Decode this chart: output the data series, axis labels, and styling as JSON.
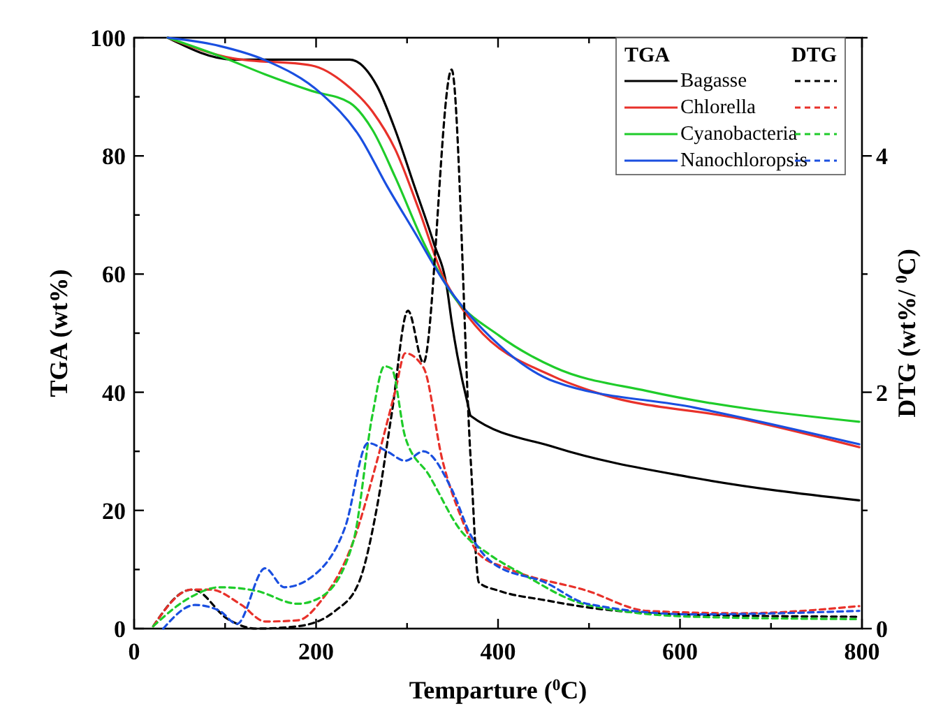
{
  "chart_data": {
    "type": "line",
    "xlabel": "Temparture ($^{0}$C)",
    "ylabel": "TGA (wt%)",
    "y2label": "DTG (wt%/ $^{0}$C)",
    "legend_title": "TGA",
    "annotations": [
      "DTG"
    ],
    "legend": "top right",
    "grid": false,
    "marker": "none",
    "xlim": [
      0,
      800
    ],
    "xticks": [
      0,
      {
        "value": 100,
        "label": null
      },
      200,
      {
        "value": 300,
        "label": null
      },
      400,
      {
        "value": 500,
        "label": null
      },
      600,
      {
        "value": 700,
        "label": null
      },
      800
    ],
    "ylim": [
      0,
      100
    ],
    "yticks": [
      0,
      {
        "value": 10,
        "label": null
      },
      20,
      {
        "value": 30,
        "label": null
      },
      40,
      {
        "value": 50,
        "label": null
      },
      60,
      {
        "value": 70,
        "label": null
      },
      80,
      {
        "value": 90,
        "label": null
      },
      100
    ],
    "y2lim": [
      0,
      5
    ],
    "y2ticks": [
      0,
      {
        "value": 1,
        "label": null
      },
      2,
      {
        "value": 3,
        "label": null
      },
      4,
      {
        "value": 5,
        "label": null
      }
    ],
    "series": [
      {
        "name": "Bagasse",
        "color": "#000000",
        "line_style": "solid",
        "x": [
          37,
          109,
          237,
          267,
          287,
          308,
          329,
          344,
          349,
          367,
          370,
          462,
          616,
          797
        ],
        "values": [
          100,
          96.3,
          96.3,
          91.8,
          84.4,
          74.9,
          65.4,
          57.5,
          52,
          37.8,
          36,
          30.7,
          25.5,
          21.7
        ]
      },
      {
        "name": "Chlorella",
        "color": "#e8312a",
        "line_style": "solid",
        "x": [
          37,
          109,
          195,
          232,
          262,
          287,
          313,
          339,
          359,
          375,
          462,
          513,
          667,
          797
        ],
        "values": [
          100,
          96.5,
          95.3,
          92.2,
          87.5,
          81.1,
          70.9,
          59.8,
          54.5,
          51.3,
          42.6,
          39.7,
          35.5,
          30.7
        ]
      },
      {
        "name": "Cyanobacteria",
        "color": "#1fcc2a",
        "line_style": "solid",
        "x": [
          37,
          94,
          144,
          195,
          237,
          262,
          287,
          318,
          349,
          401,
          462,
          564,
          797
        ],
        "values": [
          100,
          96.9,
          93.8,
          91,
          89,
          84.4,
          76.4,
          65.4,
          56.7,
          49.6,
          44.2,
          40.2,
          35
        ]
      },
      {
        "name": "Nanochloropsis",
        "color": "#1a4fe0",
        "line_style": "solid",
        "x": [
          37,
          94,
          144,
          206,
          247,
          278,
          309,
          339,
          401,
          462,
          616,
          797
        ],
        "values": [
          100,
          98.6,
          96.2,
          90.5,
          83.5,
          74.9,
          66.9,
          59.1,
          48,
          41.8,
          37.4,
          31.2
        ]
      },
      {
        "color": "#000000",
        "line_style": "dashed",
        "axis": "y2",
        "x": [
          21,
          57,
          65,
          103,
          134,
          180,
          221,
          247,
          267,
          283,
          301,
          318,
          349,
          370,
          379,
          401,
          452,
          498,
          600,
          797
        ],
        "values": [
          0.02,
          0.32,
          0.33,
          0.08,
          0,
          0.02,
          0.15,
          0.39,
          1.03,
          1.81,
          2.69,
          2.25,
          4.73,
          1.42,
          0.39,
          0.32,
          0.24,
          0.18,
          0.12,
          0.1
        ]
      },
      {
        "color": "#e8312a",
        "line_style": "dashed",
        "axis": "y2",
        "x": [
          21,
          63,
          84,
          118,
          144,
          180,
          206,
          241,
          267,
          287,
          298,
          318,
          339,
          359,
          379,
          410,
          498,
          564,
          667,
          797
        ],
        "values": [
          0.02,
          0.33,
          0.33,
          0.2,
          0.06,
          0.07,
          0.24,
          0.74,
          1.42,
          2.01,
          2.33,
          2.21,
          1.42,
          0.95,
          0.63,
          0.51,
          0.32,
          0.15,
          0.13,
          0.19
        ]
      },
      {
        "color": "#1fcc2a",
        "line_style": "dashed",
        "axis": "y2",
        "x": [
          21,
          63,
          94,
          134,
          180,
          206,
          241,
          262,
          275,
          283,
          298,
          324,
          359,
          390,
          425,
          498,
          616,
          797
        ],
        "values": [
          0.02,
          0.27,
          0.35,
          0.32,
          0.21,
          0.27,
          0.74,
          1.81,
          2.22,
          2.2,
          1.62,
          1.3,
          0.83,
          0.63,
          0.47,
          0.2,
          0.1,
          0.08
        ]
      },
      {
        "color": "#1a4fe0",
        "line_style": "dashed",
        "axis": "y2",
        "x": [
          32,
          67,
          94,
          113,
          144,
          165,
          206,
          232,
          257,
          278,
          298,
          318,
          349,
          370,
          395,
          452,
          498,
          616,
          797
        ],
        "values": [
          0,
          0.2,
          0.15,
          0.04,
          0.51,
          0.35,
          0.51,
          0.86,
          1.57,
          1.5,
          1.42,
          1.5,
          1.18,
          0.79,
          0.55,
          0.39,
          0.21,
          0.12,
          0.15
        ]
      }
    ]
  }
}
